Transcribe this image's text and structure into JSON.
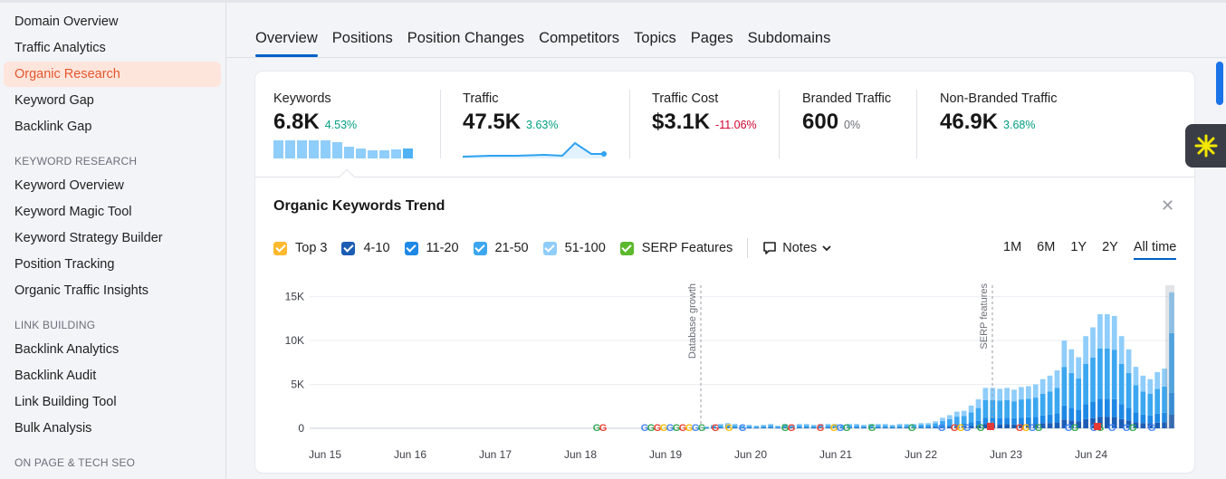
{
  "sidebar": {
    "items_top": [
      "Domain Overview",
      "Traffic Analytics",
      "Organic Research",
      "Keyword Gap",
      "Backlink Gap"
    ],
    "active_item": "Organic Research",
    "section_keyword": "KEYWORD RESEARCH",
    "items_keyword": [
      "Keyword Overview",
      "Keyword Magic Tool",
      "Keyword Strategy Builder",
      "Position Tracking",
      "Organic Traffic Insights"
    ],
    "section_link": "LINK BUILDING",
    "items_link": [
      "Backlink Analytics",
      "Backlink Audit",
      "Link Building Tool",
      "Bulk Analysis"
    ],
    "section_onpage": "ON PAGE & TECH SEO"
  },
  "tabs": [
    "Overview",
    "Positions",
    "Position Changes",
    "Competitors",
    "Topics",
    "Pages",
    "Subdomains"
  ],
  "active_tab": "Overview",
  "metrics": {
    "keywords": {
      "label": "Keywords",
      "value": "6.8K",
      "change": "4.53%"
    },
    "traffic": {
      "label": "Traffic",
      "value": "47.5K",
      "change": "3.63%"
    },
    "traffic_cost": {
      "label": "Traffic Cost",
      "value": "$3.1K",
      "change": "-11.06%"
    },
    "branded": {
      "label": "Branded Traffic",
      "value": "600",
      "change": "0%"
    },
    "non_branded": {
      "label": "Non-Branded Traffic",
      "value": "46.9K",
      "change": "3.68%"
    }
  },
  "colors": {
    "accent": "#0060c7",
    "positive": "#009f81",
    "negative": "#d1002f",
    "active_sidebar_bg": "#fde5dc",
    "active_sidebar_text": "#e4572e"
  },
  "trend": {
    "title": "Organic Keywords Trend",
    "legend": [
      {
        "label": "Top 3",
        "color": "#ffb92e"
      },
      {
        "label": "4-10",
        "color": "#1c5db4"
      },
      {
        "label": "11-20",
        "color": "#1e88e5"
      },
      {
        "label": "21-50",
        "color": "#3ca7f0"
      },
      {
        "label": "51-100",
        "color": "#8fcdfa"
      },
      {
        "label": "SERP Features",
        "color": "#5cb82c"
      }
    ],
    "notes_label": "Notes",
    "ranges": [
      "1M",
      "6M",
      "1Y",
      "2Y",
      "All time"
    ],
    "active_range": "All time",
    "annotations": [
      "Database growth",
      "SERP features"
    ]
  },
  "chart_data": {
    "type": "bar",
    "ylim": [
      0,
      17000
    ],
    "yticks": [
      "0",
      "5K",
      "10K",
      "15K"
    ],
    "xticks": [
      "Jun 15",
      "Jun 16",
      "Jun 17",
      "Jun 18",
      "Jun 19",
      "Jun 20",
      "Jun 21",
      "Jun 22",
      "Jun 23",
      "Jun 24"
    ],
    "totals": [
      200,
      400,
      500,
      600,
      500,
      300,
      400,
      300,
      400,
      500,
      300,
      500,
      400,
      500,
      500,
      400,
      500,
      500,
      500,
      400,
      500,
      500,
      400,
      500,
      500,
      500,
      400,
      500,
      500,
      500,
      600,
      600,
      800,
      1200,
      1500,
      1900,
      2000,
      2600,
      3300,
      4600,
      4600,
      4500,
      4600,
      4400,
      4700,
      4800,
      5000,
      5600,
      6000,
      6600,
      10000,
      9000,
      8100,
      10500,
      11500,
      13000,
      13000,
      12800,
      10500,
      9000,
      7000,
      6000,
      5600,
      6400,
      6800,
      15500
    ]
  }
}
